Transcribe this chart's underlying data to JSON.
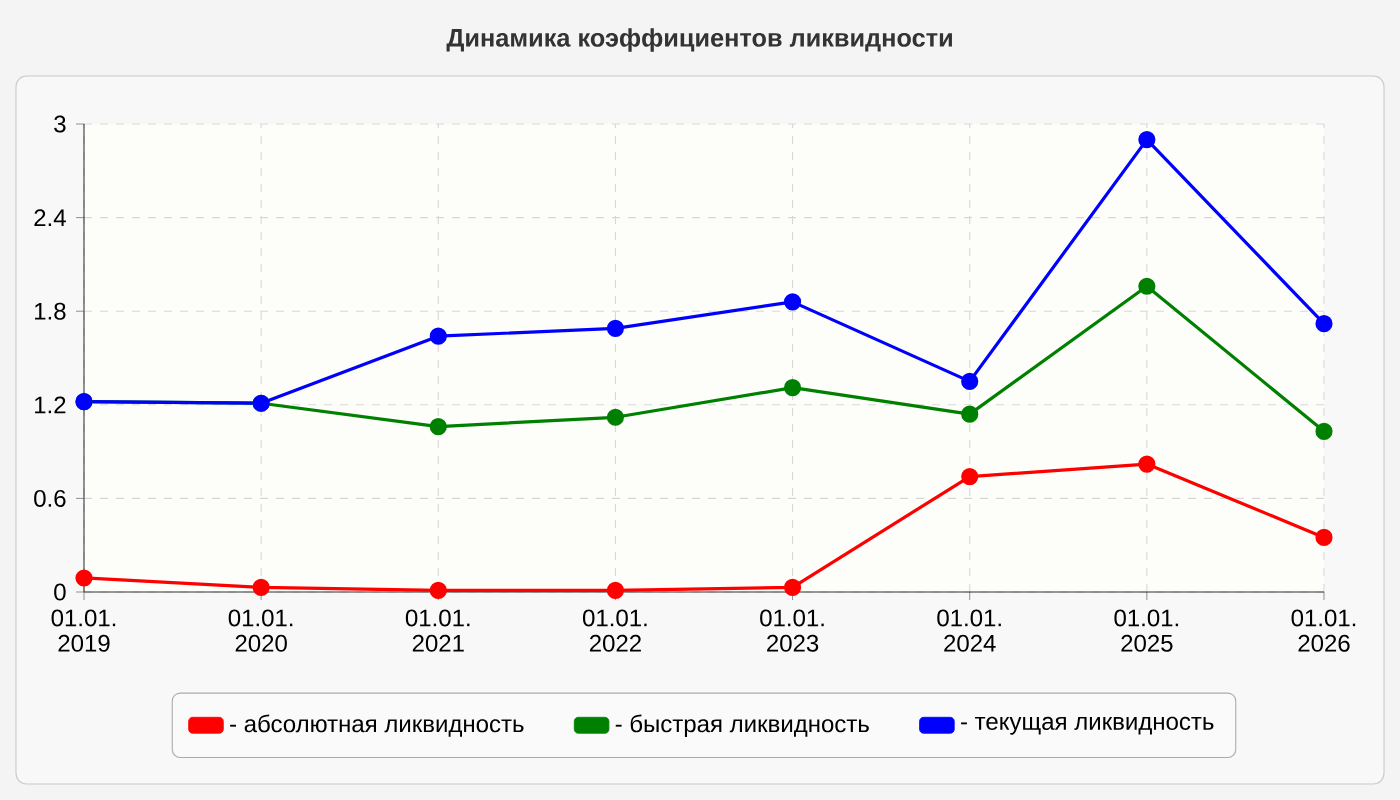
{
  "chart_data": {
    "type": "line",
    "title": "Динамика коэффициентов ликвидности",
    "categories": [
      "01.01. 2019",
      "01.01. 2020",
      "01.01. 2021",
      "01.01. 2022",
      "01.01. 2023",
      "01.01. 2024",
      "01.01. 2025",
      "01.01. 2026"
    ],
    "series": [
      {
        "name": "- абсолютная ликвидность",
        "color": "#ff0000",
        "values": [
          0.09,
          0.03,
          0.01,
          0.01,
          0.03,
          0.74,
          0.82,
          0.35
        ]
      },
      {
        "name": "- быстрая ликвидность",
        "color": "#008000",
        "values": [
          1.22,
          1.21,
          1.06,
          1.12,
          1.31,
          1.14,
          1.96,
          1.03
        ]
      },
      {
        "name": "- текущая ликвидность",
        "color": "#0000ff",
        "values": [
          1.22,
          1.21,
          1.64,
          1.69,
          1.86,
          1.35,
          2.9,
          1.72
        ]
      }
    ],
    "ylim": [
      0,
      3
    ],
    "yticks": [
      0,
      0.6,
      1.2,
      1.8,
      2.4,
      3
    ],
    "grid": true,
    "legend": "bottom",
    "marker": "circle",
    "line_style": "solid"
  }
}
